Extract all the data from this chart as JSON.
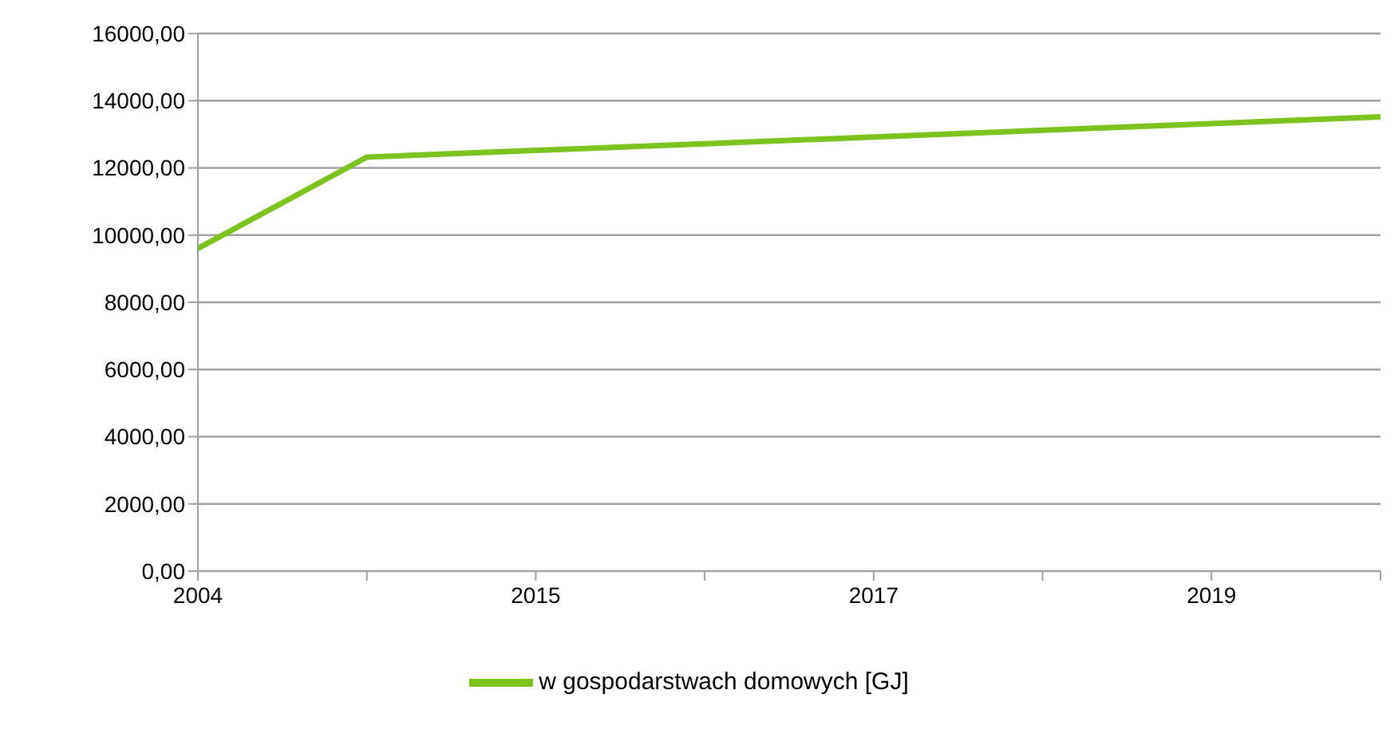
{
  "chart_data": {
    "type": "line",
    "categories": [
      "2004",
      null,
      "2015",
      null,
      "2017",
      null,
      "2019",
      null
    ],
    "series": [
      {
        "name": "w gospodarstwach domowych [GJ]",
        "color": "#7dc21e",
        "values": [
          9600,
          12320,
          12520,
          12720,
          12920,
          13120,
          13320,
          13520
        ]
      }
    ],
    "ylim": [
      0,
      16000
    ],
    "yticks": [
      {
        "value": 0,
        "label": "0,00"
      },
      {
        "value": 2000,
        "label": "2000,00"
      },
      {
        "value": 4000,
        "label": "4000,00"
      },
      {
        "value": 6000,
        "label": "6000,00"
      },
      {
        "value": 8000,
        "label": "8000,00"
      },
      {
        "value": 10000,
        "label": "10000,00"
      },
      {
        "value": 12000,
        "label": "12000,00"
      },
      {
        "value": 14000,
        "label": "14000,00"
      },
      {
        "value": 16000,
        "label": "16000,00"
      }
    ],
    "grid": "y",
    "legend": "bottom",
    "marker": "none"
  }
}
